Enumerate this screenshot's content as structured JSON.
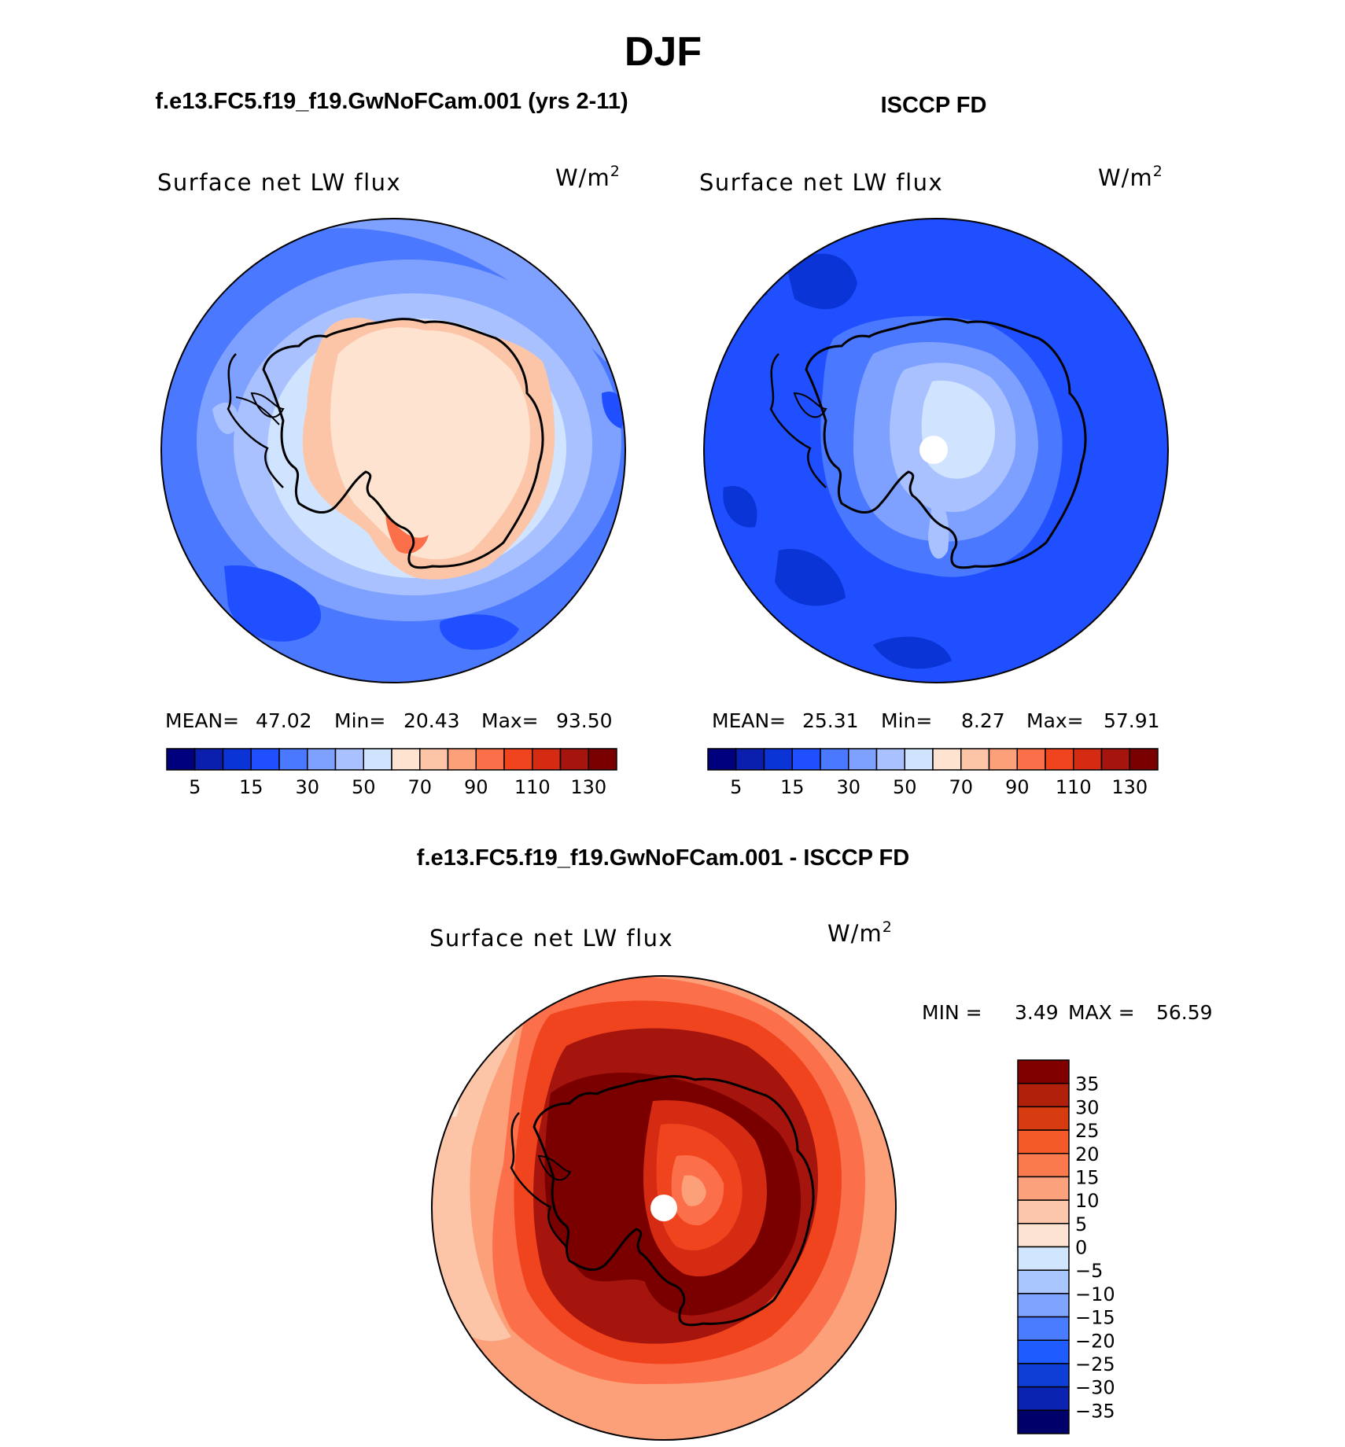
{
  "season": "DJF",
  "panels": [
    {
      "id": "model",
      "case_title": "f.e13.FC5.f19_f19.GwNoFCam.001 (yrs 2-11)",
      "variable": "Surface net LW flux",
      "units_base": "W/m",
      "units_exp": "2",
      "stats": {
        "mean_label": "MEAN=",
        "mean": "47.02",
        "min_label": "Min=",
        "min": "20.43",
        "max_label": "Max=",
        "max": "93.50"
      }
    },
    {
      "id": "obs",
      "case_title": "ISCCP FD",
      "variable": "Surface net LW flux",
      "units_base": "W/m",
      "units_exp": "2",
      "stats": {
        "mean_label": "MEAN=",
        "mean": "25.31",
        "min_label": "Min=",
        "min": "8.27",
        "max_label": "Max=",
        "max": "57.91"
      }
    }
  ],
  "diff": {
    "title": "f.e13.FC5.f19_f19.GwNoFCam.001 - ISCCP FD",
    "variable": "Surface net LW flux",
    "units_base": "W/m",
    "units_exp": "2",
    "min_label": "MIN =",
    "min": "3.49",
    "max_label": "MAX =",
    "max": "56.59"
  },
  "chart_data": [
    {
      "type": "heatmap",
      "projection": "south polar stereographic",
      "title": "Surface net LW flux",
      "units": "W/m2",
      "mean": 47.02,
      "min": 20.43,
      "max": 93.5,
      "colorbar_levels": [
        5,
        10,
        15,
        20,
        30,
        40,
        50,
        60,
        70,
        80,
        90,
        100,
        110,
        120,
        130
      ],
      "colorbar_tick_labels": [
        "5",
        "15",
        "30",
        "50",
        "70",
        "90",
        "110",
        "130"
      ],
      "colorbar_colors": [
        "#00007f",
        "#0a1fae",
        "#0a34d6",
        "#1f4fff",
        "#4a78ff",
        "#7ea1ff",
        "#a9c2ff",
        "#d0e4ff",
        "#fde3d0",
        "#fcc5a8",
        "#fca079",
        "#fb704b",
        "#f0441f",
        "#d42b12",
        "#a5150d",
        "#7a0000"
      ]
    },
    {
      "type": "heatmap",
      "projection": "south polar stereographic",
      "title": "Surface net LW flux",
      "units": "W/m2",
      "mean": 25.31,
      "min": 8.27,
      "max": 57.91,
      "colorbar_levels": [
        5,
        10,
        15,
        20,
        30,
        40,
        50,
        60,
        70,
        80,
        90,
        100,
        110,
        120,
        130
      ],
      "colorbar_tick_labels": [
        "5",
        "15",
        "30",
        "50",
        "70",
        "90",
        "110",
        "130"
      ],
      "colorbar_colors": [
        "#00007f",
        "#0a1fae",
        "#0a34d6",
        "#1f4fff",
        "#4a78ff",
        "#7ea1ff",
        "#a9c2ff",
        "#d0e4ff",
        "#fde3d0",
        "#fcc5a8",
        "#fca079",
        "#fb704b",
        "#f0441f",
        "#d42b12",
        "#a5150d",
        "#7a0000"
      ]
    },
    {
      "type": "heatmap",
      "projection": "south polar stereographic",
      "title": "Surface net LW flux",
      "units": "W/m2",
      "min": 3.49,
      "max": 56.59,
      "colorbar_tick_labels": [
        "35",
        "30",
        "25",
        "20",
        "15",
        "10",
        "5",
        "0",
        "−5",
        "−10",
        "−15",
        "−20",
        "−25",
        "−30",
        "−35"
      ],
      "colorbar_colors": [
        "#00006b",
        "#0a23b0",
        "#0f3ed6",
        "#1f5cff",
        "#4a7cff",
        "#7ea4ff",
        "#a9c6ff",
        "#d0e6ff",
        "#fde4d2",
        "#fcc6aa",
        "#fba27c",
        "#fa7a4d",
        "#f45a27",
        "#d73b10",
        "#b0200a",
        "#800000"
      ]
    }
  ]
}
